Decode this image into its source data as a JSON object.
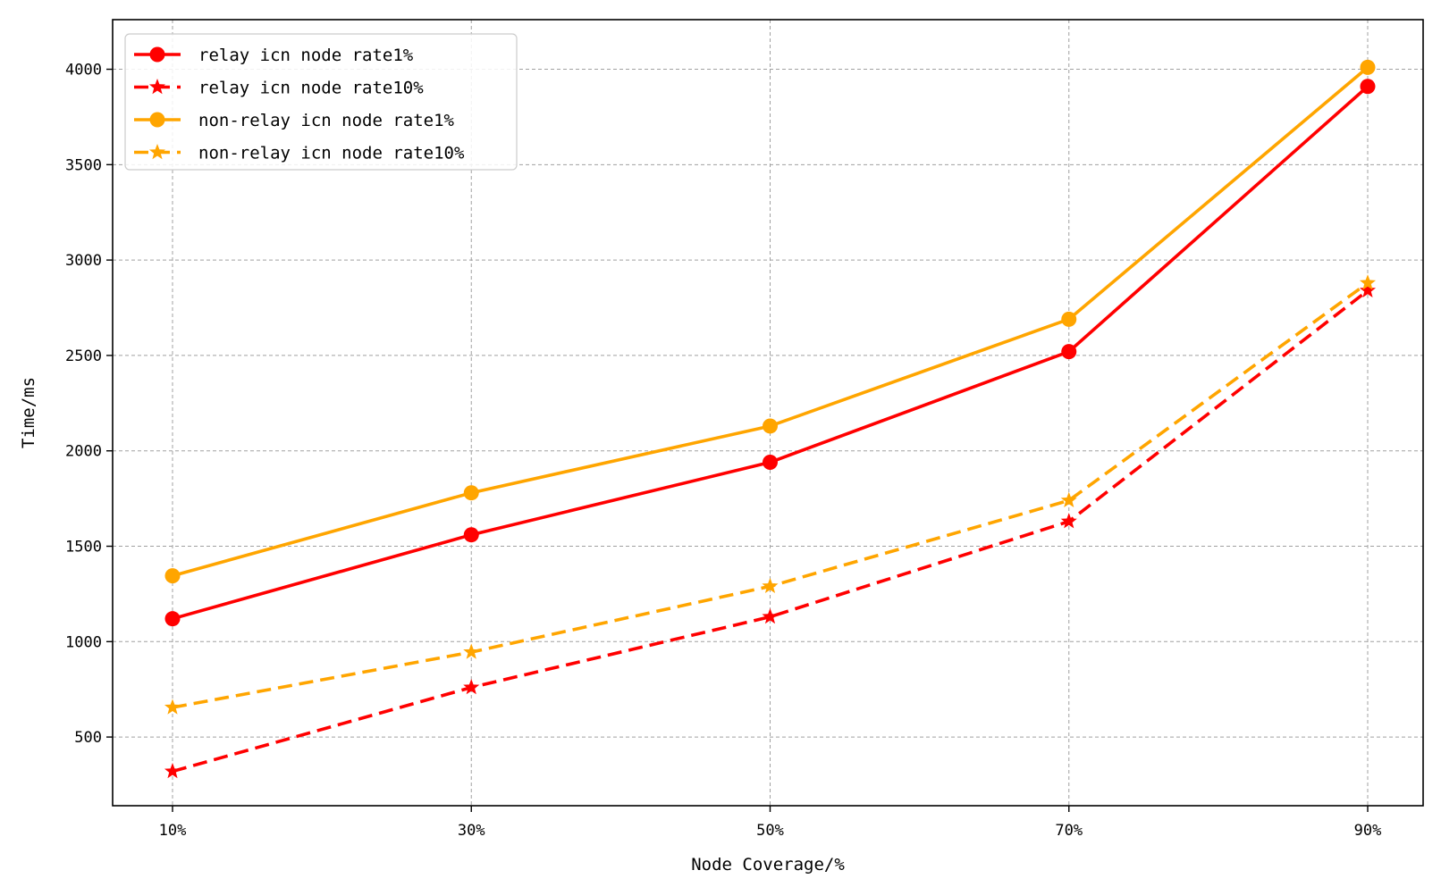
{
  "chart_data": {
    "type": "line",
    "title": "",
    "xlabel": "Node Coverage/%",
    "ylabel": "Time/ms",
    "categories": [
      "10%",
      "30%",
      "50%",
      "70%",
      "90%"
    ],
    "yticks": [
      500,
      1000,
      1500,
      2000,
      2500,
      3000,
      3500,
      4000
    ],
    "ylim": [
      140,
      4260
    ],
    "grid": true,
    "legend_position": "top-left",
    "series": [
      {
        "name": "relay icn node rate1%",
        "values": [
          1120,
          1560,
          1940,
          2520,
          3910
        ],
        "color": "#ff0000",
        "linestyle": "solid",
        "marker": "circle"
      },
      {
        "name": "relay icn node rate10%",
        "values": [
          320,
          760,
          1130,
          1630,
          2840
        ],
        "color": "#ff0000",
        "linestyle": "dashed",
        "marker": "star"
      },
      {
        "name": "non-relay icn node rate1%",
        "values": [
          1345,
          1780,
          2130,
          2690,
          4010
        ],
        "color": "#ffa500",
        "linestyle": "solid",
        "marker": "circle"
      },
      {
        "name": "non-relay icn node rate10%",
        "values": [
          655,
          945,
          1290,
          1740,
          2880
        ],
        "color": "#ffa500",
        "linestyle": "dashed",
        "marker": "star"
      }
    ]
  }
}
